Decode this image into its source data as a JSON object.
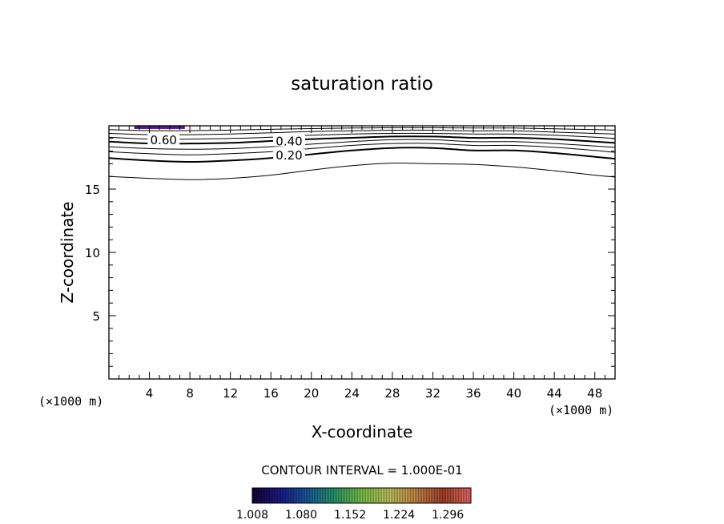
{
  "chart_data": {
    "type": "contour",
    "title": "saturation ratio",
    "xlabel": "X-coordinate",
    "ylabel": "Z-coordinate",
    "x_unit_label": "(×1000 m)",
    "x_unit_label_right": "(×1000 m)",
    "xlim": [
      0,
      50
    ],
    "ylim": [
      0,
      20
    ],
    "x_ticks": [
      "4",
      "8",
      "12",
      "16",
      "20",
      "24",
      "28",
      "32",
      "36",
      "40",
      "44",
      "48"
    ],
    "x_tick_values": [
      4,
      8,
      12,
      16,
      20,
      24,
      28,
      32,
      36,
      40,
      44,
      48
    ],
    "y_ticks": [
      "5",
      "10",
      "15"
    ],
    "y_tick_values": [
      5,
      10,
      15
    ],
    "contour_interval_text": "CONTOUR INTERVAL = 1.000E-01",
    "contour_labels": [
      {
        "text": "0.60",
        "x": 5.4,
        "y": 18.8
      },
      {
        "text": "0.40",
        "x": 17.8,
        "y": 18.7
      },
      {
        "text": "0.20",
        "x": 17.8,
        "y": 17.6
      }
    ],
    "contours": [
      {
        "level": 0.1,
        "bold": false,
        "points": [
          [
            0,
            16.0
          ],
          [
            4,
            15.85
          ],
          [
            8,
            15.75
          ],
          [
            12,
            15.85
          ],
          [
            16,
            16.1
          ],
          [
            20,
            16.5
          ],
          [
            24,
            16.85
          ],
          [
            28,
            17.05
          ],
          [
            32,
            17.0
          ],
          [
            36,
            16.95
          ],
          [
            40,
            16.75
          ],
          [
            44,
            16.45
          ],
          [
            48,
            16.1
          ],
          [
            50,
            15.95
          ]
        ]
      },
      {
        "level": 0.2,
        "bold": true,
        "points": [
          [
            0,
            17.45
          ],
          [
            4,
            17.25
          ],
          [
            8,
            17.15
          ],
          [
            12,
            17.25
          ],
          [
            16,
            17.45
          ],
          [
            20,
            17.75
          ],
          [
            24,
            18.05
          ],
          [
            28,
            18.25
          ],
          [
            32,
            18.25
          ],
          [
            36,
            18.05
          ],
          [
            40,
            18.05
          ],
          [
            44,
            17.85
          ],
          [
            48,
            17.55
          ],
          [
            50,
            17.4
          ]
        ]
      },
      {
        "level": 0.3,
        "bold": false,
        "points": [
          [
            0,
            17.95
          ],
          [
            4,
            17.8
          ],
          [
            8,
            17.7
          ],
          [
            12,
            17.8
          ],
          [
            16,
            17.95
          ],
          [
            20,
            18.2
          ],
          [
            24,
            18.45
          ],
          [
            28,
            18.6
          ],
          [
            32,
            18.6
          ],
          [
            36,
            18.45
          ],
          [
            40,
            18.45
          ],
          [
            44,
            18.3
          ],
          [
            48,
            18.05
          ],
          [
            50,
            17.9
          ]
        ]
      },
      {
        "level": 0.4,
        "bold": false,
        "points": [
          [
            0,
            18.35
          ],
          [
            4,
            18.2
          ],
          [
            8,
            18.15
          ],
          [
            12,
            18.2
          ],
          [
            16,
            18.35
          ],
          [
            20,
            18.55
          ],
          [
            24,
            18.75
          ],
          [
            28,
            18.9
          ],
          [
            32,
            18.9
          ],
          [
            36,
            18.75
          ],
          [
            40,
            18.75
          ],
          [
            44,
            18.6
          ],
          [
            48,
            18.4
          ],
          [
            50,
            18.3
          ]
        ]
      },
      {
        "level": 0.5,
        "bold": true,
        "points": [
          [
            0,
            18.75
          ],
          [
            4,
            18.6
          ],
          [
            8,
            18.6
          ],
          [
            12,
            18.65
          ],
          [
            16,
            18.8
          ],
          [
            20,
            18.95
          ],
          [
            24,
            19.05
          ],
          [
            28,
            19.15
          ],
          [
            32,
            19.15
          ],
          [
            36,
            19.05
          ],
          [
            40,
            19.05
          ],
          [
            44,
            18.95
          ],
          [
            48,
            18.75
          ],
          [
            50,
            18.65
          ]
        ]
      },
      {
        "level": 0.6,
        "bold": false,
        "points": [
          [
            0,
            19.1
          ],
          [
            4,
            18.95
          ],
          [
            8,
            18.95
          ],
          [
            12,
            19.0
          ],
          [
            16,
            19.1
          ],
          [
            20,
            19.25
          ],
          [
            24,
            19.35
          ],
          [
            28,
            19.4
          ],
          [
            32,
            19.4
          ],
          [
            36,
            19.35
          ],
          [
            40,
            19.35
          ],
          [
            44,
            19.25
          ],
          [
            48,
            19.1
          ],
          [
            50,
            19.0
          ]
        ]
      },
      {
        "level": 0.7,
        "bold": false,
        "points": [
          [
            0,
            19.4
          ],
          [
            4,
            19.3
          ],
          [
            8,
            19.3
          ],
          [
            12,
            19.35
          ],
          [
            16,
            19.45
          ],
          [
            20,
            19.55
          ],
          [
            24,
            19.6
          ],
          [
            28,
            19.65
          ],
          [
            32,
            19.65
          ],
          [
            36,
            19.6
          ],
          [
            40,
            19.6
          ],
          [
            44,
            19.5
          ],
          [
            48,
            19.4
          ],
          [
            50,
            19.35
          ]
        ]
      },
      {
        "level": 0.8,
        "bold": false,
        "points": [
          [
            0,
            19.7
          ],
          [
            4,
            19.62
          ],
          [
            8,
            19.62
          ],
          [
            12,
            19.66
          ],
          [
            16,
            19.72
          ],
          [
            20,
            19.78
          ],
          [
            24,
            19.82
          ],
          [
            28,
            19.85
          ],
          [
            32,
            19.85
          ],
          [
            36,
            19.82
          ],
          [
            40,
            19.82
          ],
          [
            44,
            19.76
          ],
          [
            48,
            19.7
          ],
          [
            50,
            19.66
          ]
        ]
      }
    ],
    "shaded_patches": [
      {
        "x": [
          2.5,
          7.5
        ],
        "y": [
          19.75,
          20.0
        ],
        "color": "#5b1a8a"
      }
    ],
    "colorbar": {
      "min": 1.008,
      "max": 1.33,
      "labels": [
        "1.008",
        "1.080",
        "1.152",
        "1.224",
        "1.296"
      ],
      "label_values": [
        1.008,
        1.08,
        1.152,
        1.224,
        1.296
      ],
      "colors": [
        "#1a0033",
        "#1a1a8c",
        "#1a5aa0",
        "#2a9a6a",
        "#7ac84a",
        "#c8c860",
        "#c88a4a",
        "#a8402a",
        "#f07070"
      ]
    }
  }
}
